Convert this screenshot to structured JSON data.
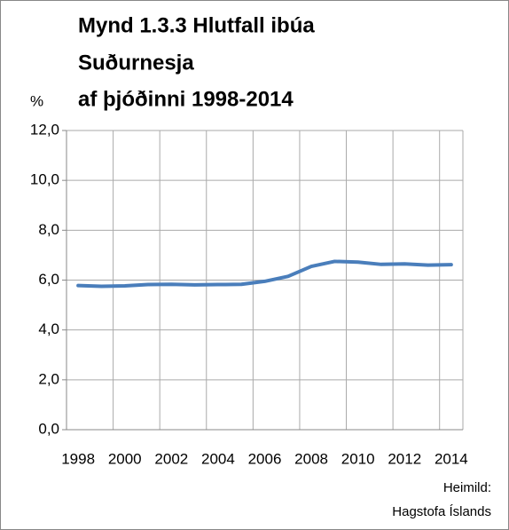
{
  "chart_data": {
    "type": "line",
    "title": [
      "Mynd 1.3.3 Hlutfall ibúa",
      "Suðurnesja",
      "af þjóðinni 1998-2014"
    ],
    "y_label": "%",
    "source": [
      "Heimild:",
      "Hagstofa Íslands"
    ],
    "categories": [
      "1998",
      null,
      "2000",
      null,
      "2002",
      null,
      "2004",
      null,
      "2006",
      null,
      "2008",
      null,
      "2010",
      null,
      "2012",
      null,
      "2014"
    ],
    "series": [
      {
        "name": "Hlutfall",
        "color": "#4a7ebb",
        "values": [
          5.78,
          5.75,
          5.77,
          5.82,
          5.83,
          5.81,
          5.82,
          5.83,
          5.95,
          6.15,
          6.55,
          6.75,
          6.72,
          6.63,
          6.65,
          6.6,
          6.62
        ]
      }
    ],
    "ylim": [
      0,
      12
    ],
    "yticks": [
      {
        "value": 0,
        "label": "0,0"
      },
      {
        "value": 2,
        "label": "2,0"
      },
      {
        "value": 4,
        "label": "4,0"
      },
      {
        "value": 6,
        "label": "6,0"
      },
      {
        "value": 8,
        "label": "8,0"
      },
      {
        "value": 10,
        "label": "10,0"
      },
      {
        "value": 12,
        "label": "12,0"
      }
    ],
    "grid": true
  }
}
